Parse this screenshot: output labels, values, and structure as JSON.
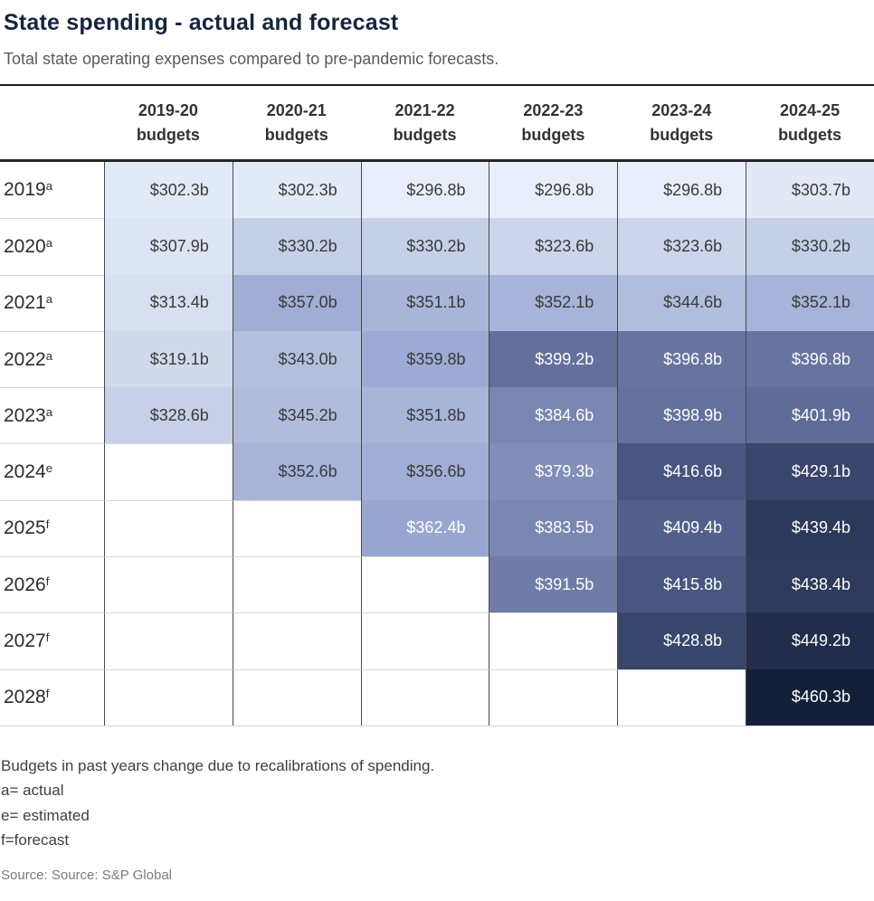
{
  "header": {
    "title": "State spending - actual and forecast",
    "subtitle": "Total state operating expenses compared to pre-pandemic forecasts."
  },
  "chart_data": {
    "type": "heatmap",
    "title": "State spending - actual and forecast",
    "subtitle": "Total state operating expenses compared to pre-pandemic forecasts.",
    "unit": "billions of dollars",
    "value_format": "$%vb",
    "columns": [
      {
        "line1": "2019-20",
        "line2": "budgets"
      },
      {
        "line1": "2020-21",
        "line2": "budgets"
      },
      {
        "line1": "2021-22",
        "line2": "budgets"
      },
      {
        "line1": "2022-23",
        "line2": "budgets"
      },
      {
        "line1": "2023-24",
        "line2": "budgets"
      },
      {
        "line1": "2024-25",
        "line2": "budgets"
      }
    ],
    "rows": [
      {
        "label": "2019",
        "superscript": "a",
        "values": [
          302.3,
          302.3,
          296.8,
          296.8,
          296.8,
          303.7
        ]
      },
      {
        "label": "2020",
        "superscript": "a",
        "values": [
          307.9,
          330.2,
          330.2,
          323.6,
          323.6,
          330.2
        ]
      },
      {
        "label": "2021",
        "superscript": "a",
        "values": [
          313.4,
          357.0,
          351.1,
          352.1,
          344.6,
          352.1
        ]
      },
      {
        "label": "2022",
        "superscript": "a",
        "values": [
          319.1,
          343.0,
          359.8,
          399.2,
          396.8,
          396.8
        ]
      },
      {
        "label": "2023",
        "superscript": "a",
        "values": [
          328.6,
          345.2,
          351.8,
          384.6,
          398.9,
          401.9
        ]
      },
      {
        "label": "2024",
        "superscript": "e",
        "values": [
          null,
          352.6,
          356.6,
          379.3,
          416.6,
          429.1
        ]
      },
      {
        "label": "2025",
        "superscript": "f",
        "values": [
          null,
          null,
          362.4,
          383.5,
          409.4,
          439.4
        ]
      },
      {
        "label": "2026",
        "superscript": "f",
        "values": [
          null,
          null,
          null,
          391.5,
          415.8,
          438.4
        ]
      },
      {
        "label": "2027",
        "superscript": "f",
        "values": [
          null,
          null,
          null,
          null,
          428.8,
          449.2
        ]
      },
      {
        "label": "2028",
        "superscript": "f",
        "values": [
          null,
          null,
          null,
          null,
          null,
          460.3
        ]
      }
    ],
    "value_range": [
      296.8,
      460.3
    ],
    "color_scale": {
      "stops": [
        [
          296.8,
          "#e9effa"
        ],
        [
          330.0,
          "#c5cfe7"
        ],
        [
          362.0,
          "#9aa7d1"
        ],
        [
          400.0,
          "#626f9b"
        ],
        [
          417.0,
          "#47547e"
        ],
        [
          460.3,
          "#14203a"
        ]
      ],
      "white_text_threshold": 361,
      "dark_text_color": "#3a3a3a",
      "light_text_color": "#ffffff"
    }
  },
  "notes": {
    "line1": "Budgets in past years change due to recalibrations of spending.",
    "line2": "a= actual",
    "line3": "e= estimated",
    "line4": "f=forecast"
  },
  "source": "Source: Source: S&P Global"
}
